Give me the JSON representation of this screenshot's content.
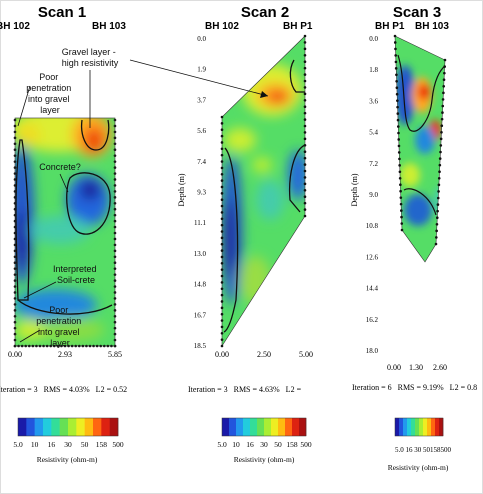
{
  "scans": [
    {
      "title": "Scan 1",
      "left_label": "BH 102",
      "right_label": "BH 103",
      "x_ticks": [
        "0.00",
        "2.93",
        "5.85"
      ],
      "stats": "Iteration = 3   RMS = 4.03%   L2 = 0.52"
    },
    {
      "title": "Scan 2",
      "left_label": "BH 102",
      "right_label": "BH P1",
      "y_label": "Depth (m)",
      "y_ticks": [
        "0.0",
        "1.9",
        "3.7",
        "5.6",
        "7.4",
        "9.3",
        "11.1",
        "13.0",
        "14.8",
        "16.7",
        "18.5"
      ],
      "x_ticks": [
        "0.00",
        "2.50",
        "5.00"
      ],
      "stats": "Iteration = 3   RMS = 4.63%   L2 ="
    },
    {
      "title": "Scan 3",
      "left_label": "BH P1",
      "right_label": "BH 103",
      "y_label": "Depth (m)",
      "y_ticks": [
        "0.0",
        "1.8",
        "3.6",
        "5.4",
        "7.2",
        "9.0",
        "10.8",
        "12.6",
        "14.4",
        "16.2",
        "18.0"
      ],
      "x_ticks": [
        "0.00",
        "1.30",
        "2.60"
      ],
      "stats": "Iteration = 6   RMS = 9.19%   L2 = 0.8"
    }
  ],
  "annotations": {
    "poor_penetration_top": [
      "Poor",
      "penetration",
      "into gravel",
      "layer"
    ],
    "gravel_layer": [
      "Gravel layer -",
      "high resistivity"
    ],
    "concrete": [
      "Concrete?"
    ],
    "soilcrete": [
      "Interpreted",
      "Soil-crete"
    ],
    "poor_penetration_bottom": [
      "Poor",
      "penetration",
      "into gravel",
      "layer"
    ]
  },
  "colorbar": {
    "ticks": [
      "5.0",
      "10",
      "16",
      "30",
      "50",
      "158",
      "500"
    ],
    "ticks_compact": "5.0 16 30 50158500",
    "label": "Resistivity (ohm-m)",
    "colors": [
      "#1a1aa8",
      "#2255dd",
      "#2299ee",
      "#22ccdd",
      "#33dd99",
      "#66e055",
      "#aaee33",
      "#eeee22",
      "#ffbb11",
      "#ff6611",
      "#dd2211",
      "#aa1111"
    ]
  },
  "chart_data": [
    {
      "type": "heatmap",
      "title": "Scan 1",
      "xlabel": "",
      "ylabel": "",
      "x_range": [
        0.0,
        5.85
      ],
      "y_range": [
        0.0,
        18.5
      ],
      "color_scale": "log",
      "color_range": [
        5.0,
        500
      ],
      "boreholes": [
        "BH 102",
        "BH 103"
      ]
    },
    {
      "type": "heatmap",
      "title": "Scan 2",
      "xlabel": "",
      "ylabel": "Depth (m)",
      "x_range": [
        0.0,
        5.0
      ],
      "y_range": [
        0.0,
        18.5
      ],
      "color_scale": "log",
      "color_range": [
        5.0,
        500
      ],
      "boreholes": [
        "BH 102",
        "BH P1"
      ]
    },
    {
      "type": "heatmap",
      "title": "Scan 3",
      "xlabel": "",
      "ylabel": "Depth (m)",
      "x_range": [
        0.0,
        2.6
      ],
      "y_range": [
        0.0,
        18.0
      ],
      "color_scale": "log",
      "color_range": [
        5.0,
        500
      ],
      "boreholes": [
        "BH P1",
        "BH 103"
      ]
    }
  ]
}
